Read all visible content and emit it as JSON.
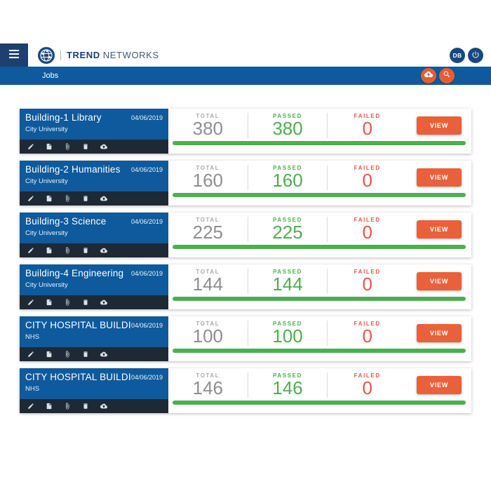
{
  "colors": {
    "brand_navy": "#17497f",
    "primary_blue": "#0e5a9c",
    "toolbar_dark": "#1e2935",
    "accent_orange": "#e8613a",
    "pass_green": "#4caf50",
    "fail_red": "#e8544b",
    "total_gray": "#8f8f8f"
  },
  "header": {
    "brand_primary": "TREND",
    "brand_secondary": "NETWORKS",
    "db_button_label": "DB",
    "icons": [
      "menu-icon",
      "logo-globe-icon",
      "power-icon"
    ]
  },
  "nav": {
    "title": "Jobs",
    "icons": [
      "cloud-sync-icon",
      "search-icon"
    ]
  },
  "labels": {
    "total": "TOTAL",
    "passed": "PASSED",
    "failed": "FAILED",
    "view": "VIEW"
  },
  "toolbar_icons": [
    "edit-icon",
    "file-icon",
    "attachment-icon",
    "delete-icon",
    "upload-icon"
  ],
  "jobs": [
    {
      "name": "Building-1 Library",
      "client": "City University",
      "date": "04/06/2019",
      "total": "380",
      "passed": "380",
      "failed": "0",
      "progress_pct": 100
    },
    {
      "name": "Building-2 Humanities",
      "client": "City University",
      "date": "04/06/2019",
      "total": "160",
      "passed": "160",
      "failed": "0",
      "progress_pct": 100
    },
    {
      "name": "Building-3 Science",
      "client": "City University",
      "date": "04/06/2019",
      "total": "225",
      "passed": "225",
      "failed": "0",
      "progress_pct": 100
    },
    {
      "name": "Building-4 Engineering",
      "client": "City University",
      "date": "04/06/2019",
      "total": "144",
      "passed": "144",
      "failed": "0",
      "progress_pct": 100
    },
    {
      "name": "CITY HOSPITAL BUILDI...",
      "client": "NHS",
      "date": "04/06/2019",
      "total": "100",
      "passed": "100",
      "failed": "0",
      "progress_pct": 100
    },
    {
      "name": "CITY HOSPITAL BUILDI...",
      "client": "NHS",
      "date": "04/06/2019",
      "total": "146",
      "passed": "146",
      "failed": "0",
      "progress_pct": 100
    }
  ]
}
